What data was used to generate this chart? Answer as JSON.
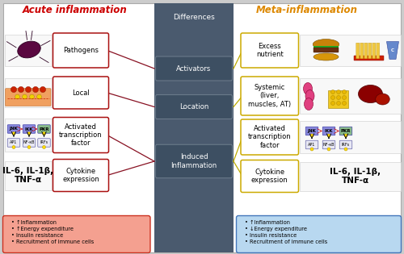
{
  "title_left": "Acute inflammation",
  "title_right": "Meta-inflammation",
  "title_left_color": "#cc0000",
  "title_right_color": "#dd8800",
  "center_bg_color": "#4a5a6e",
  "main_bg_color": "#ffffff",
  "outer_bg_color": "#cccccc",
  "center_labels": [
    "Differences",
    "Activators",
    "Location",
    "Induced\nInflammation"
  ],
  "center_label_color": "#ffffff",
  "left_box_labels": [
    "Pathogens",
    "Local",
    "Activated\ntranscription\nfactor",
    "Cytokine\nexpression"
  ],
  "right_box_labels": [
    "Excess\nnutrient",
    "Systemic\n(liver,\nmuscles, AT)",
    "Activated\ntranscription\nfactor",
    "Cytokine\nexpression"
  ],
  "left_box_color": "#aa1111",
  "right_box_color": "#ccaa00",
  "left_cytokine_text": "IL-6, IL-1β,\nTNF-α",
  "right_cytokine_text": "IL-6, IL-1β,\nTNF-α",
  "bottom_left_text": "• ↑Inflammation\n• ↑Energy expenditure\n• Insulin resistance\n• Recruitment of immune cells",
  "bottom_right_text": "• ↑Inflammation\n• ↓Energy expenditure\n• Insulin resistance\n• Recruitment of immune cells",
  "bottom_left_fill": "#f4a090",
  "bottom_left_edge": "#cc3322",
  "bottom_right_fill": "#b8d8f0",
  "bottom_right_edge": "#4477bb",
  "connector_left_color": "#881122",
  "connector_right_color": "#bbaa00",
  "center_box_fill": "#3d4f62",
  "center_box_edge": "#6a7a8a"
}
